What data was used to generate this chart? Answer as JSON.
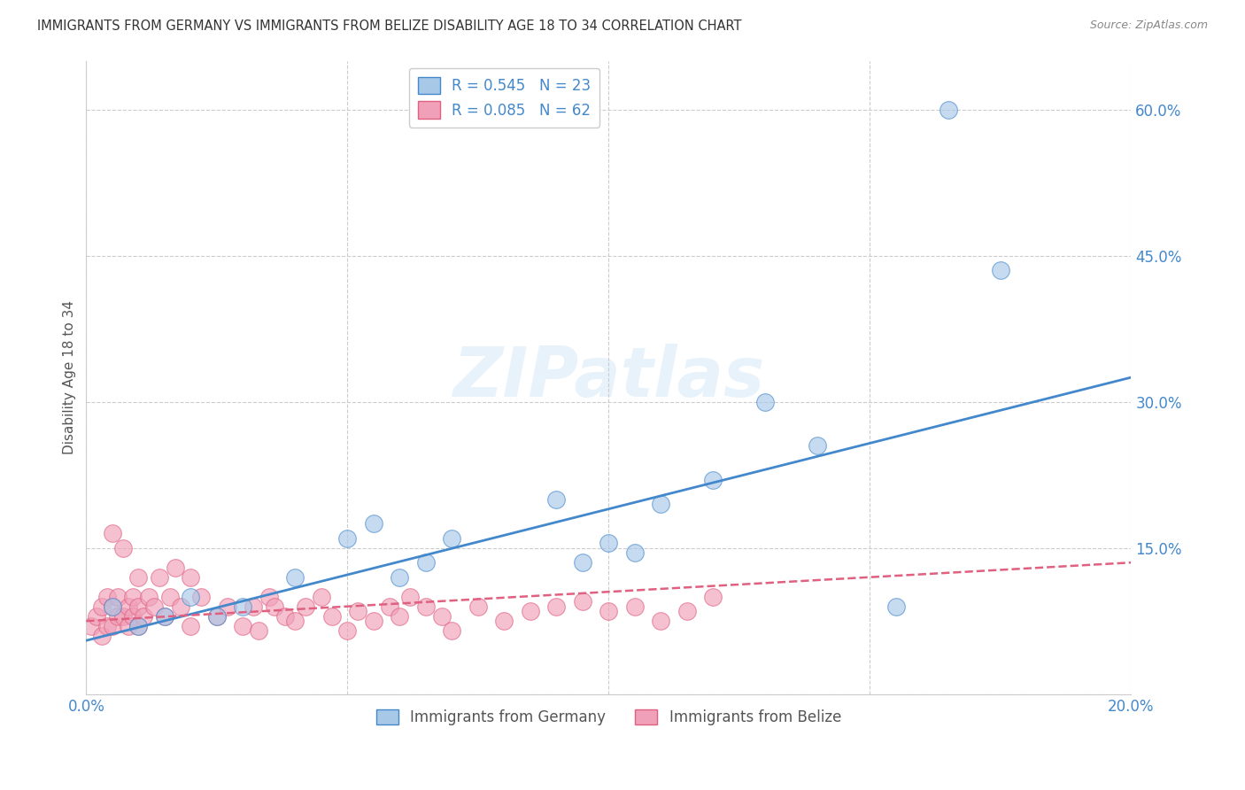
{
  "title": "IMMIGRANTS FROM GERMANY VS IMMIGRANTS FROM BELIZE DISABILITY AGE 18 TO 34 CORRELATION CHART",
  "source": "Source: ZipAtlas.com",
  "ylabel": "Disability Age 18 to 34",
  "xlim": [
    0.0,
    0.2
  ],
  "ylim": [
    0.0,
    0.65
  ],
  "xticks": [
    0.0,
    0.05,
    0.1,
    0.15,
    0.2
  ],
  "yticks": [
    0.0,
    0.15,
    0.3,
    0.45,
    0.6
  ],
  "ytick_labels": [
    "",
    "15.0%",
    "30.0%",
    "45.0%",
    "60.0%"
  ],
  "xtick_labels": [
    "0.0%",
    "",
    "",
    "",
    "20.0%"
  ],
  "germany_R": 0.545,
  "germany_N": 23,
  "belize_R": 0.085,
  "belize_N": 62,
  "germany_color": "#a8c8e8",
  "belize_color": "#f0a0b8",
  "germany_line_color": "#4488cc",
  "belize_line_color": "#e06080",
  "watermark": "ZIPatlas",
  "legend_label_germany": "Immigrants from Germany",
  "legend_label_belize": "Immigrants from Belize",
  "germany_points_x": [
    0.005,
    0.01,
    0.015,
    0.02,
    0.025,
    0.03,
    0.04,
    0.05,
    0.055,
    0.06,
    0.065,
    0.07,
    0.09,
    0.095,
    0.1,
    0.105,
    0.11,
    0.12,
    0.13,
    0.14,
    0.155,
    0.165,
    0.175
  ],
  "germany_points_y": [
    0.09,
    0.07,
    0.08,
    0.1,
    0.08,
    0.09,
    0.12,
    0.16,
    0.175,
    0.12,
    0.135,
    0.16,
    0.2,
    0.135,
    0.155,
    0.145,
    0.195,
    0.22,
    0.3,
    0.255,
    0.09,
    0.6,
    0.435
  ],
  "belize_points_x": [
    0.001,
    0.002,
    0.003,
    0.003,
    0.004,
    0.004,
    0.005,
    0.005,
    0.005,
    0.006,
    0.006,
    0.007,
    0.007,
    0.008,
    0.008,
    0.009,
    0.009,
    0.01,
    0.01,
    0.01,
    0.011,
    0.012,
    0.013,
    0.014,
    0.015,
    0.016,
    0.017,
    0.018,
    0.02,
    0.02,
    0.022,
    0.025,
    0.027,
    0.03,
    0.032,
    0.033,
    0.035,
    0.036,
    0.038,
    0.04,
    0.042,
    0.045,
    0.047,
    0.05,
    0.052,
    0.055,
    0.058,
    0.06,
    0.062,
    0.065,
    0.068,
    0.07,
    0.075,
    0.08,
    0.085,
    0.09,
    0.095,
    0.1,
    0.105,
    0.11,
    0.115,
    0.12
  ],
  "belize_points_y": [
    0.07,
    0.08,
    0.06,
    0.09,
    0.07,
    0.1,
    0.165,
    0.09,
    0.07,
    0.08,
    0.1,
    0.15,
    0.08,
    0.09,
    0.07,
    0.1,
    0.08,
    0.12,
    0.09,
    0.07,
    0.08,
    0.1,
    0.09,
    0.12,
    0.08,
    0.1,
    0.13,
    0.09,
    0.12,
    0.07,
    0.1,
    0.08,
    0.09,
    0.07,
    0.09,
    0.065,
    0.1,
    0.09,
    0.08,
    0.075,
    0.09,
    0.1,
    0.08,
    0.065,
    0.085,
    0.075,
    0.09,
    0.08,
    0.1,
    0.09,
    0.08,
    0.065,
    0.09,
    0.075,
    0.085,
    0.09,
    0.095,
    0.085,
    0.09,
    0.075,
    0.085,
    0.1
  ],
  "germany_line_x0": 0.0,
  "germany_line_y0": 0.055,
  "germany_line_x1": 0.2,
  "germany_line_y1": 0.325,
  "belize_line_x0": 0.0,
  "belize_line_y0": 0.075,
  "belize_line_x1": 0.2,
  "belize_line_y1": 0.135
}
